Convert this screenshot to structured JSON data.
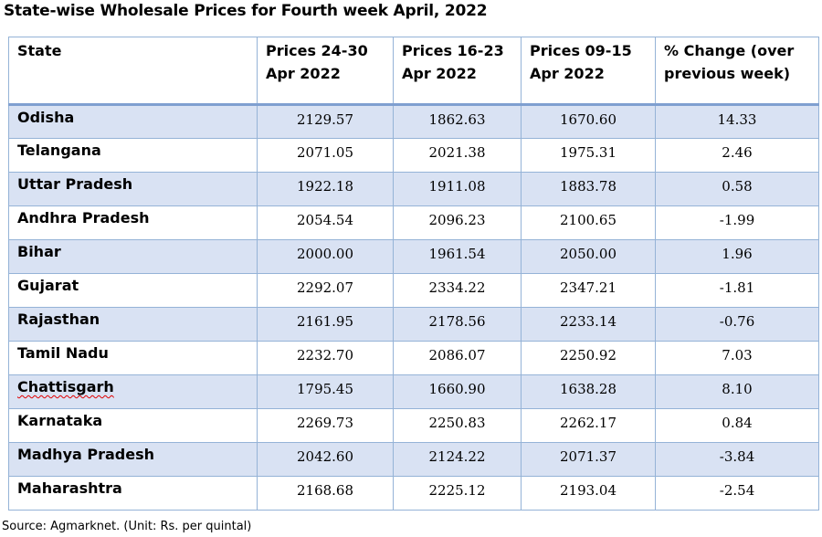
{
  "title": "State-wise Wholesale Prices for Fourth week April, 2022",
  "columns": [
    "State",
    "Prices 24-30 Apr 2022",
    "Prices 16-23 Apr 2022",
    "Prices 09-15 Apr 2022",
    "% Change (over previous week)"
  ],
  "rows": [
    {
      "state": "Odisha",
      "p1": "2129.57",
      "p2": "1862.63",
      "p3": "1670.60",
      "change": "14.33"
    },
    {
      "state": "Telangana",
      "p1": "2071.05",
      "p2": "2021.38",
      "p3": "1975.31",
      "change": "2.46"
    },
    {
      "state": "Uttar Pradesh",
      "p1": "1922.18",
      "p2": "1911.08",
      "p3": "1883.78",
      "change": "0.58"
    },
    {
      "state": "Andhra Pradesh",
      "p1": "2054.54",
      "p2": "2096.23",
      "p3": "2100.65",
      "change": "-1.99"
    },
    {
      "state": "Bihar",
      "p1": "2000.00",
      "p2": "1961.54",
      "p3": "2050.00",
      "change": "1.96"
    },
    {
      "state": "Gujarat",
      "p1": "2292.07",
      "p2": "2334.22",
      "p3": "2347.21",
      "change": "-1.81"
    },
    {
      "state": "Rajasthan",
      "p1": "2161.95",
      "p2": "2178.56",
      "p3": "2233.14",
      "change": "-0.76"
    },
    {
      "state": "Tamil Nadu",
      "p1": "2232.70",
      "p2": "2086.07",
      "p3": "2250.92",
      "change": "7.03"
    },
    {
      "state": "Chattisgarh",
      "p1": "1795.45",
      "p2": "1660.90",
      "p3": "1638.28",
      "change": "8.10"
    },
    {
      "state": "Karnataka",
      "p1": "2269.73",
      "p2": "2250.83",
      "p3": "2262.17",
      "change": "0.84"
    },
    {
      "state": "Madhya Pradesh",
      "p1": "2042.60",
      "p2": "2124.22",
      "p3": "2071.37",
      "change": "-3.84"
    },
    {
      "state": "Maharashtra",
      "p1": "2168.68",
      "p2": "2225.12",
      "p3": "2193.04",
      "change": "-2.54"
    }
  ],
  "source": "Source: Agmarknet. (Unit: Rs. per quintal)",
  "colors": {
    "border": "#95b3d7",
    "header_rule": "#7f9fd0",
    "shaded_row": "#d9e2f3",
    "spellcheck_underline": "#e00000"
  }
}
